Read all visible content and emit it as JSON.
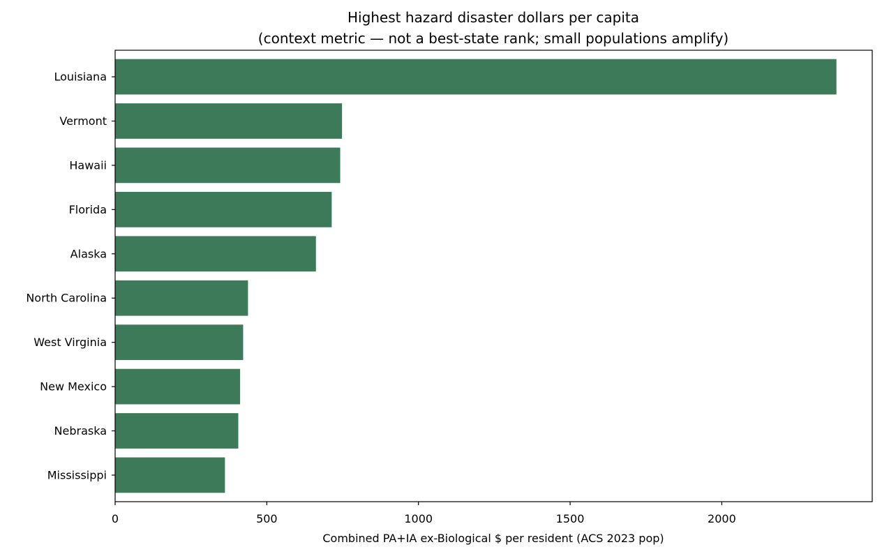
{
  "chart_data": {
    "type": "bar",
    "orientation": "horizontal",
    "title": "Highest hazard disaster dollars per capita",
    "subtitle": "(context metric — not a best-state rank; small populations amplify)",
    "xlabel": "Combined PA+IA ex-Biological $ per resident (ACS 2023 pop)",
    "ylabel": "",
    "categories": [
      "Louisiana",
      "Vermont",
      "Hawaii",
      "Florida",
      "Alaska",
      "North Carolina",
      "West Virginia",
      "New Mexico",
      "Nebraska",
      "Mississippi"
    ],
    "values": [
      2378,
      748,
      742,
      714,
      662,
      438,
      422,
      412,
      406,
      362
    ],
    "xlim": [
      0,
      2496
    ],
    "xticks": [
      0,
      500,
      1000,
      1500,
      2000
    ],
    "grid": false,
    "legend": "none",
    "colors": {
      "bar": "#3d7a5a",
      "axes": "#000000",
      "background": "#ffffff"
    }
  }
}
